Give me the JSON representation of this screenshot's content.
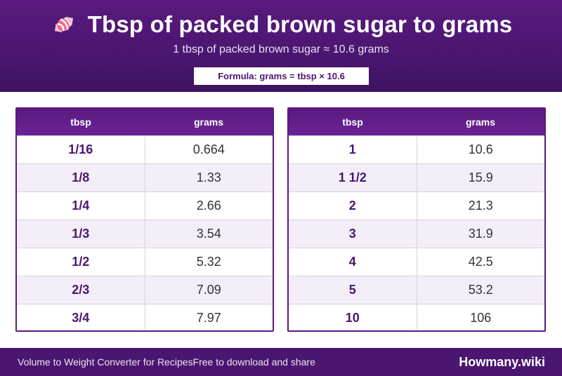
{
  "header": {
    "title": "Tbsp of packed brown sugar to grams",
    "subtitle": "1 tbsp of packed brown sugar ≈ 10.6 grams",
    "formula": "Formula: grams = tbsp × 10.6",
    "icon": "candy-icon"
  },
  "colors": {
    "brand": "#4a1670",
    "accent": "#5a1a7f",
    "row_alt": "#f3eef8"
  },
  "tables": [
    {
      "headers": [
        "tbsp",
        "grams"
      ],
      "rows": [
        [
          "1/16",
          "0.664"
        ],
        [
          "1/8",
          "1.33"
        ],
        [
          "1/4",
          "2.66"
        ],
        [
          "1/3",
          "3.54"
        ],
        [
          "1/2",
          "5.32"
        ],
        [
          "2/3",
          "7.09"
        ],
        [
          "3/4",
          "7.97"
        ]
      ]
    },
    {
      "headers": [
        "tbsp",
        "grams"
      ],
      "rows": [
        [
          "1",
          "10.6"
        ],
        [
          "1 1/2",
          "15.9"
        ],
        [
          "2",
          "21.3"
        ],
        [
          "3",
          "31.9"
        ],
        [
          "4",
          "42.5"
        ],
        [
          "5",
          "53.2"
        ],
        [
          "10",
          "106"
        ]
      ]
    }
  ],
  "footer": {
    "left_text": "Volume to Weight Converter for Recipes",
    "left_text_2": "Free to download and share",
    "brand": "Howmany.wiki"
  }
}
